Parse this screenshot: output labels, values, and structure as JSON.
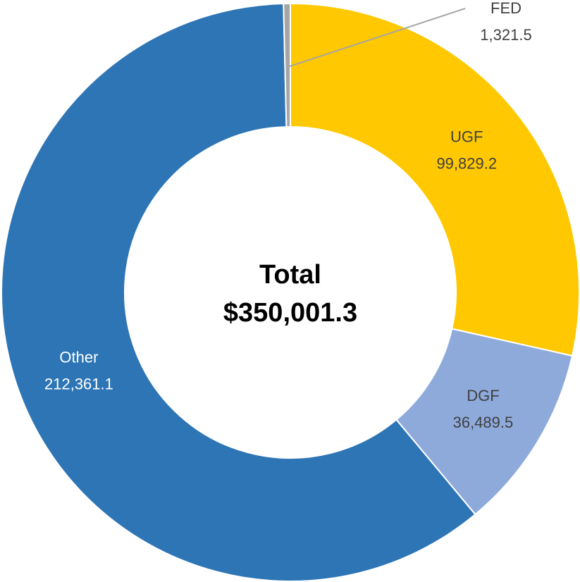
{
  "chart_data": {
    "type": "donut",
    "categories": [
      "UGF",
      "DGF",
      "Other",
      "FED"
    ],
    "values": [
      99829.2,
      36489.5,
      212361.1,
      1321.5
    ],
    "value_labels": [
      "99,829.2",
      "36,489.5",
      "212,361.1",
      "1,321.5"
    ],
    "colors": [
      "#ffc800",
      "#8eaadb",
      "#2e75b6",
      "#a5a5a5"
    ],
    "annotations": [
      "Total",
      "$350,001.3"
    ]
  }
}
